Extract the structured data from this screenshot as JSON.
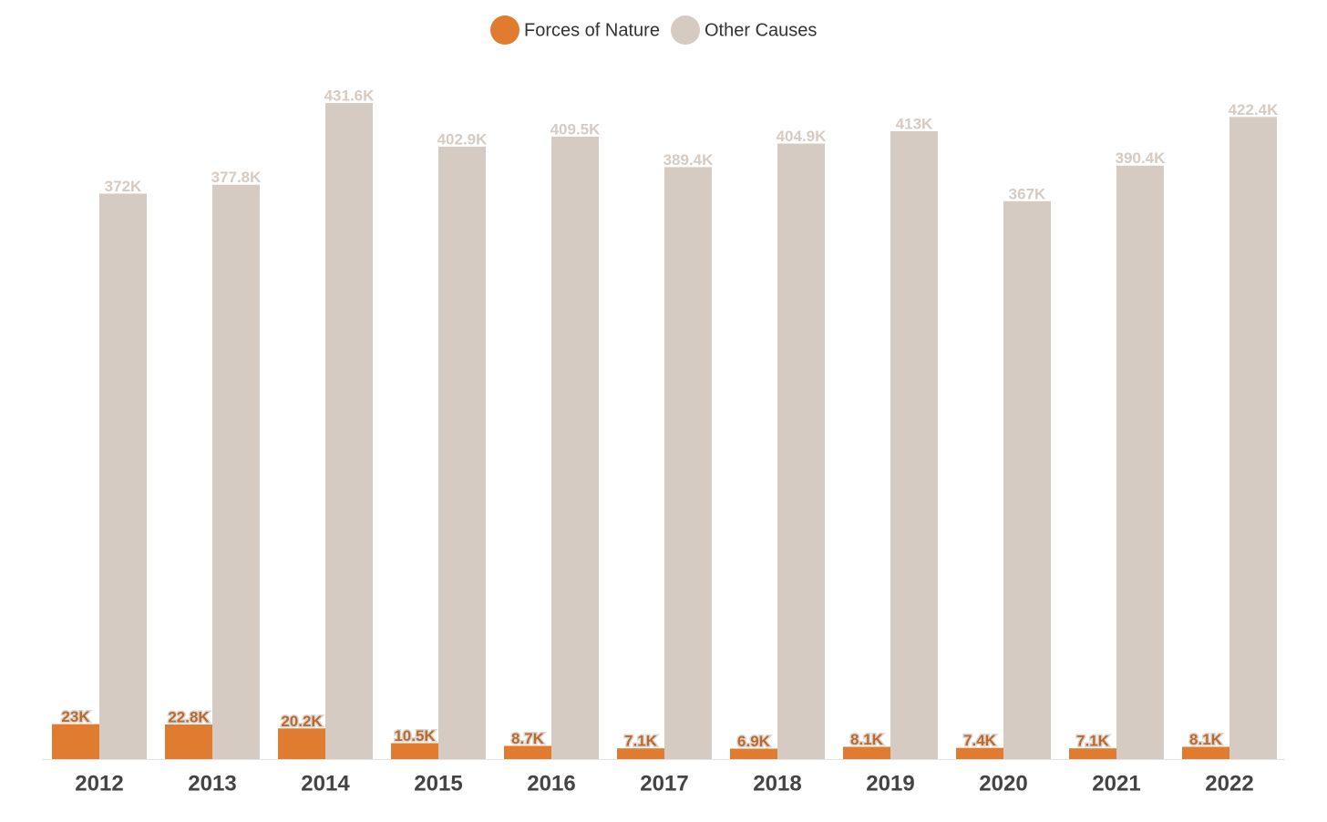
{
  "chart_data": {
    "type": "bar",
    "categories": [
      "2012",
      "2013",
      "2014",
      "2015",
      "2016",
      "2017",
      "2018",
      "2019",
      "2020",
      "2021",
      "2022"
    ],
    "series": [
      {
        "name": "Forces of Nature",
        "color": "#e07b30",
        "values": [
          23000,
          22800,
          20200,
          10500,
          8700,
          7100,
          6900,
          8100,
          7400,
          7100,
          8100
        ],
        "value_labels": [
          "23K",
          "22.8K",
          "20.2K",
          "10.5K",
          "8.7K",
          "7.1K",
          "6.9K",
          "8.1K",
          "7.4K",
          "7.1K",
          "8.1K"
        ]
      },
      {
        "name": "Other Causes",
        "color": "#d6cbc2",
        "values": [
          372000,
          377800,
          431600,
          402900,
          409500,
          389400,
          404900,
          413000,
          367000,
          390400,
          422400
        ],
        "value_labels": [
          "372K",
          "377.8K",
          "431.6K",
          "402.9K",
          "409.5K",
          "389.4K",
          "404.9K",
          "413K",
          "367K",
          "390.4K",
          "422.4K"
        ]
      }
    ],
    "legend": "top"
  }
}
